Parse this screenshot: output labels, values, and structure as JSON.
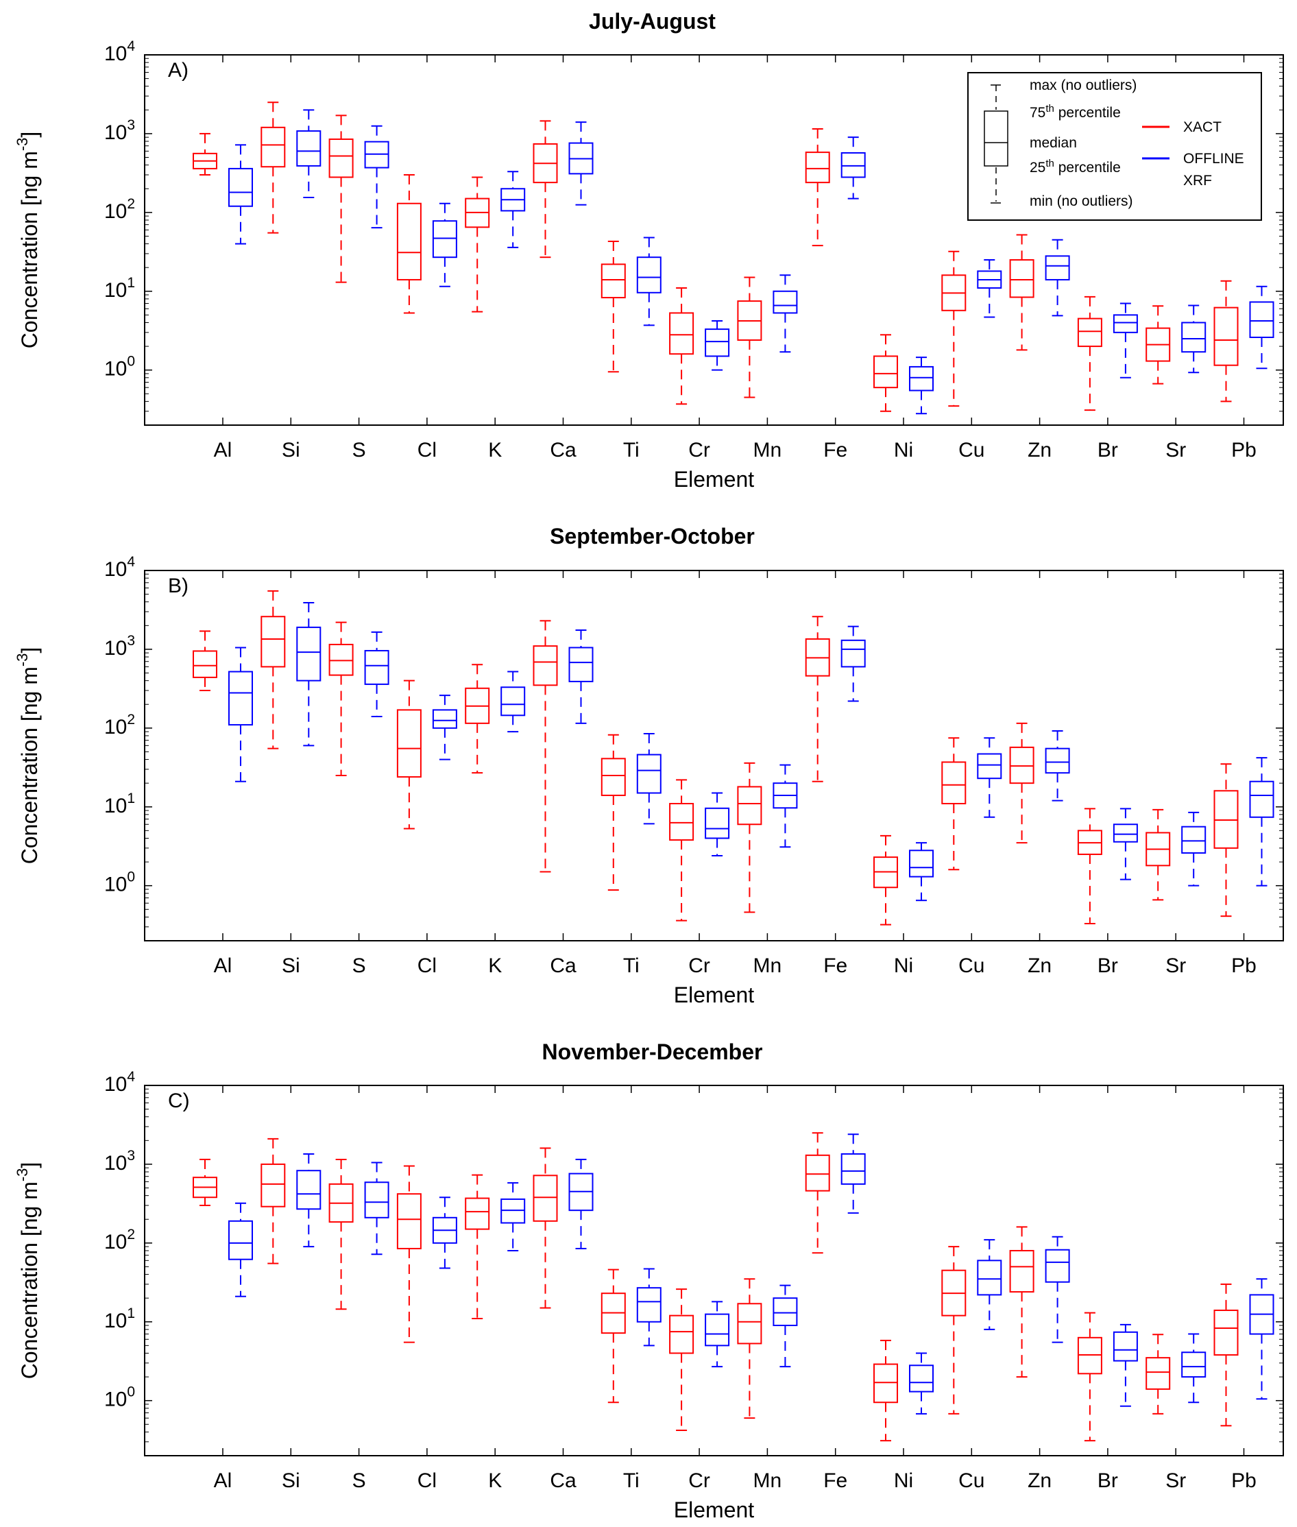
{
  "chart_data": [
    {
      "type": "box",
      "panel_label": "A)",
      "title": "July-August",
      "xlabel": "Element",
      "ylabel": "Concentration [ng m",
      "ylabel_sup": "-3",
      "ylabel_close": "]",
      "yscale": "log",
      "ylim": [
        0.2,
        10000
      ],
      "yticks": [
        {
          "base": "10",
          "exp": "0"
        },
        {
          "base": "10",
          "exp": "1"
        },
        {
          "base": "10",
          "exp": "2"
        },
        {
          "base": "10",
          "exp": "3"
        },
        {
          "base": "10",
          "exp": "4"
        }
      ],
      "categories": [
        "Al",
        "Si",
        "S",
        "Cl",
        "K",
        "Ca",
        "Ti",
        "Cr",
        "Mn",
        "Fe",
        "Ni",
        "Cu",
        "Zn",
        "Br",
        "Sr",
        "Pb"
      ],
      "series": [
        {
          "name": "XACT",
          "color": "#ff0000",
          "boxes": [
            [
              300,
              360,
              450,
              560,
              1000
            ],
            [
              55,
              380,
              720,
              1200,
              2500
            ],
            [
              13,
              280,
              520,
              850,
              1700
            ],
            [
              5.3,
              14,
              31,
              130,
              300
            ],
            [
              5.5,
              65,
              100,
              150,
              280
            ],
            [
              27,
              240,
              420,
              740,
              1450
            ],
            [
              0.95,
              8.3,
              14,
              22,
              43
            ],
            [
              0.37,
              1.6,
              2.8,
              5.3,
              11
            ],
            [
              0.45,
              2.4,
              4.2,
              7.5,
              15
            ],
            [
              38,
              240,
              360,
              580,
              1150
            ],
            [
              0.3,
              0.6,
              0.9,
              1.5,
              2.8
            ],
            [
              0.35,
              5.7,
              9.5,
              16,
              32
            ],
            [
              1.8,
              8.4,
              14,
              25,
              52
            ],
            [
              0.31,
              2,
              3.1,
              4.5,
              8.5
            ],
            [
              0.67,
              1.3,
              2.1,
              3.4,
              6.5
            ],
            [
              0.4,
              1.15,
              2.4,
              6.2,
              13.5
            ]
          ]
        },
        {
          "name": "OFFLINE XRF",
          "color": "#0000ff",
          "boxes": [
            [
              40,
              120,
              180,
              360,
              720
            ],
            [
              155,
              390,
              600,
              1080,
              2000
            ],
            [
              64,
              370,
              550,
              790,
              1250
            ],
            [
              11.5,
              27,
              47,
              78,
              130
            ],
            [
              36,
              105,
              145,
              200,
              330
            ],
            [
              125,
              310,
              480,
              760,
              1400
            ],
            [
              3.7,
              9.6,
              15,
              27,
              48
            ],
            [
              1,
              1.5,
              2.3,
              3.3,
              4.2
            ],
            [
              1.7,
              5.3,
              6.6,
              10,
              16
            ],
            [
              150,
              280,
              390,
              570,
              900
            ],
            [
              0.28,
              0.55,
              0.8,
              1.1,
              1.45
            ],
            [
              4.7,
              11,
              14,
              18,
              25
            ],
            [
              4.9,
              14,
              21,
              28,
              45
            ],
            [
              0.8,
              3,
              4,
              5,
              7
            ],
            [
              0.93,
              1.7,
              2.5,
              4,
              6.6
            ],
            [
              1.05,
              2.6,
              4.2,
              7.3,
              11.5
            ]
          ]
        }
      ]
    },
    {
      "type": "box",
      "panel_label": "B)",
      "title": "September-October",
      "xlabel": "Element",
      "ylabel": "Concentration [ng m",
      "ylabel_sup": "-3",
      "ylabel_close": "]",
      "yscale": "log",
      "ylim": [
        0.2,
        10000
      ],
      "yticks": [
        {
          "base": "10",
          "exp": "0"
        },
        {
          "base": "10",
          "exp": "1"
        },
        {
          "base": "10",
          "exp": "2"
        },
        {
          "base": "10",
          "exp": "3"
        },
        {
          "base": "10",
          "exp": "4"
        }
      ],
      "categories": [
        "Al",
        "Si",
        "S",
        "Cl",
        "K",
        "Ca",
        "Ti",
        "Cr",
        "Mn",
        "Fe",
        "Ni",
        "Cu",
        "Zn",
        "Br",
        "Sr",
        "Pb"
      ],
      "series": [
        {
          "name": "XACT",
          "color": "#ff0000",
          "boxes": [
            [
              300,
              440,
              620,
              950,
              1700
            ],
            [
              55,
              600,
              1350,
              2600,
              5500
            ],
            [
              25,
              470,
              720,
              1150,
              2200
            ],
            [
              5.3,
              24,
              55,
              170,
              400
            ],
            [
              27,
              115,
              190,
              320,
              640
            ],
            [
              1.5,
              350,
              690,
              1100,
              2300
            ],
            [
              0.88,
              14,
              25,
              41,
              82
            ],
            [
              0.36,
              3.8,
              6.3,
              11,
              22
            ],
            [
              0.46,
              6,
              11,
              18,
              36
            ],
            [
              21,
              460,
              780,
              1350,
              2600
            ],
            [
              0.32,
              0.95,
              1.5,
              2.3,
              4.3
            ],
            [
              1.6,
              11,
              19,
              37,
              75
            ],
            [
              3.5,
              20,
              33,
              57,
              115
            ],
            [
              0.33,
              2.5,
              3.5,
              5,
              9.5
            ],
            [
              0.66,
              1.8,
              2.9,
              4.7,
              9.2
            ],
            [
              0.41,
              3,
              6.8,
              16,
              35
            ]
          ]
        },
        {
          "name": "OFFLINE XRF",
          "color": "#0000ff",
          "boxes": [
            [
              21,
              110,
              280,
              520,
              1050
            ],
            [
              60,
              400,
              920,
              1900,
              3900
            ],
            [
              140,
              360,
              620,
              960,
              1650
            ],
            [
              40,
              100,
              125,
              170,
              260
            ],
            [
              90,
              145,
              200,
              330,
              520
            ],
            [
              115,
              390,
              680,
              1050,
              1750
            ],
            [
              6.1,
              15,
              29,
              46,
              85
            ],
            [
              2.4,
              4,
              5.3,
              9.6,
              15
            ],
            [
              3.1,
              9.7,
              14,
              20,
              34
            ],
            [
              220,
              600,
              1000,
              1300,
              1950
            ],
            [
              0.65,
              1.3,
              1.7,
              2.8,
              3.5
            ],
            [
              7.4,
              23,
              34,
              47,
              75
            ],
            [
              12,
              27,
              37,
              55,
              92
            ],
            [
              1.2,
              3.6,
              4.5,
              6,
              9.5
            ],
            [
              1,
              2.6,
              3.7,
              5.6,
              8.5
            ],
            [
              1,
              7.4,
              14,
              21,
              42
            ]
          ]
        }
      ]
    },
    {
      "type": "box",
      "panel_label": "C)",
      "title": "November-December",
      "xlabel": "Element",
      "ylabel": "Concentration [ng m",
      "ylabel_sup": "-3",
      "ylabel_close": "]",
      "yscale": "log",
      "ylim": [
        0.2,
        10000
      ],
      "yticks": [
        {
          "base": "10",
          "exp": "0"
        },
        {
          "base": "10",
          "exp": "1"
        },
        {
          "base": "10",
          "exp": "2"
        },
        {
          "base": "10",
          "exp": "3"
        },
        {
          "base": "10",
          "exp": "4"
        }
      ],
      "categories": [
        "Al",
        "Si",
        "S",
        "Cl",
        "K",
        "Ca",
        "Ti",
        "Cr",
        "Mn",
        "Fe",
        "Ni",
        "Cu",
        "Zn",
        "Br",
        "Sr",
        "Pb"
      ],
      "series": [
        {
          "name": "XACT",
          "color": "#ff0000",
          "boxes": [
            [
              300,
              380,
              510,
              680,
              1150
            ],
            [
              55,
              290,
              560,
              1000,
              2100
            ],
            [
              14.5,
              185,
              320,
              560,
              1150
            ],
            [
              5.5,
              85,
              200,
              420,
              950
            ],
            [
              11,
              150,
              250,
              370,
              730
            ],
            [
              15,
              190,
              380,
              720,
              1600
            ],
            [
              0.95,
              7.2,
              13,
              23,
              46
            ],
            [
              0.42,
              4,
              7.5,
              12,
              26
            ],
            [
              0.6,
              5.3,
              10,
              17,
              35
            ],
            [
              75,
              460,
              750,
              1300,
              2500
            ],
            [
              0.31,
              0.95,
              1.7,
              2.9,
              5.8
            ],
            [
              0.68,
              12,
              23,
              45,
              90
            ],
            [
              2,
              24,
              50,
              80,
              160
            ],
            [
              0.31,
              2.2,
              3.8,
              6.3,
              13
            ],
            [
              0.68,
              1.4,
              2.3,
              3.5,
              6.9
            ],
            [
              0.48,
              3.8,
              8.3,
              14,
              30
            ]
          ]
        },
        {
          "name": "OFFLINE XRF",
          "color": "#0000ff",
          "boxes": [
            [
              21,
              62,
              100,
              190,
              320
            ],
            [
              90,
              270,
              420,
              830,
              1350
            ],
            [
              72,
              210,
              330,
              590,
              1050
            ],
            [
              48,
              100,
              145,
              210,
              380
            ],
            [
              80,
              180,
              260,
              360,
              580
            ],
            [
              85,
              260,
              450,
              760,
              1150
            ],
            [
              5,
              10,
              18,
              27,
              47
            ],
            [
              2.7,
              5,
              7,
              12.5,
              18
            ],
            [
              2.7,
              9,
              13,
              20,
              29
            ],
            [
              240,
              560,
              820,
              1350,
              2400
            ],
            [
              0.68,
              1.3,
              1.7,
              2.8,
              4
            ],
            [
              8,
              22,
              35,
              60,
              110
            ],
            [
              5.5,
              32,
              57,
              82,
              120
            ],
            [
              0.85,
              3.2,
              4.4,
              7.4,
              9.2
            ],
            [
              0.95,
              2,
              2.7,
              4.1,
              7
            ],
            [
              1.05,
              7,
              12.5,
              22,
              35
            ]
          ]
        }
      ]
    }
  ],
  "legend": {
    "max": "max (no outliers)",
    "p75": "75",
    "p25": "25",
    "th": "th",
    "percentile": " percentile",
    "median": "median",
    "min": "min (no outliers)",
    "xact": "XACT",
    "offline_1": "OFFLINE",
    "offline_2": "XRF"
  }
}
